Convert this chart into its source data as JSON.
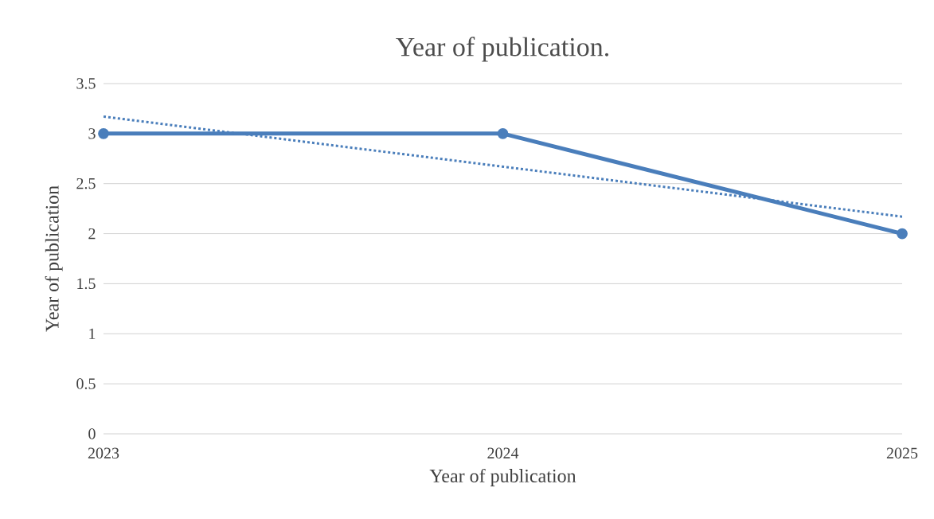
{
  "chart_data": {
    "type": "line",
    "title": "Year of publication.",
    "xlabel": "Year of publication",
    "ylabel": "Year of publication",
    "x": [
      2023,
      2024,
      2025
    ],
    "series": [
      {
        "color": "#4a7ebb",
        "values": [
          3,
          3,
          2
        ],
        "marker": "circle",
        "line_style": "solid"
      },
      {
        "type": "line",
        "color": "#4a7ebb",
        "x": [
          2023,
          2025
        ],
        "values": [
          3.17,
          2.17
        ],
        "marker": "none",
        "line_style": "dotted"
      }
    ],
    "xlim": [
      2023,
      2025
    ],
    "xticks": [
      2023,
      2024,
      2025
    ],
    "ylim": [
      0,
      3.5
    ],
    "yticks": [
      0,
      0.5,
      1,
      1.5,
      2,
      2.5,
      3,
      3.5
    ],
    "grid": "y"
  }
}
